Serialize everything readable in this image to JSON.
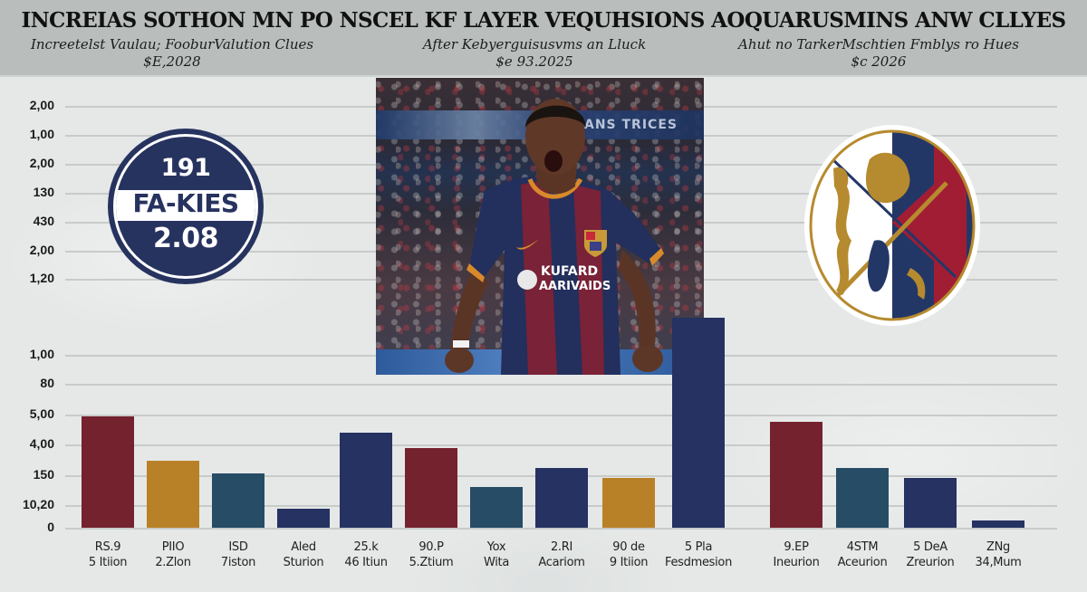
{
  "header": {
    "title": "INCREIAS SOTHON MN PO NSCEL KF LAYER VEQUHSIONS AOQUARUSMINS ANW CLLYES",
    "subtitles": [
      {
        "text": "Increetelst Vaulau; FooburValution Clues",
        "year": "$E,2028"
      },
      {
        "text": "After Kebyerguisusvms an Lluck",
        "year": "$e 93.2025"
      },
      {
        "text": "Ahut  no TarkerMschtien Fmblys ro Hues",
        "year": "$c 2026"
      }
    ]
  },
  "badge": {
    "line1": "191",
    "line2": "FA-KIES",
    "line3": "2.08",
    "colors": {
      "fill": "#27335f",
      "band": "#ffffff"
    }
  },
  "photo": {
    "sponsor_line1": "KUFARD",
    "sponsor_line2": "AARIVAIDS",
    "banner_text": "ANS TRICES"
  },
  "crest": {
    "colors": {
      "white": "#ffffff",
      "navy": "#233767",
      "red": "#a11d34",
      "gold": "#b68a2e"
    }
  },
  "colors": {
    "red": "#75222f",
    "gold": "#b88127",
    "teal": "#264c66",
    "navy": "#253262",
    "grid": "#c7cbca",
    "header_bg": "#b9bebd"
  },
  "chart_data": {
    "type": "bar",
    "title": "INCREIAS SOTHON MN PO NSCEL KF LAYER VEQUHSIONS AOQUARUSMINS ANW CLLYES",
    "upper_axis_ticks": [
      "2,00",
      "1,00",
      "2,00",
      "130",
      "430",
      "2,00",
      "1,20"
    ],
    "lower_axis_ticks": [
      "1,00",
      "80",
      "5,00",
      "4,00",
      "150",
      "10,20",
      "0"
    ],
    "grid": true,
    "categories": [
      [
        "RS.9",
        "5 Itiion"
      ],
      [
        "PIIO",
        "2.Zlon"
      ],
      [
        "ISD",
        "7iston"
      ],
      [
        "Aled",
        "Sturion"
      ],
      [
        "25.k",
        "46 Itiun"
      ],
      [
        "90.P",
        "5.Ztium"
      ],
      [
        "Yox",
        "Wita"
      ],
      [
        "2.RI",
        "Acariom"
      ],
      [
        "90 de",
        "9 Itiion"
      ],
      [
        "5 Pla",
        "Fesdmesion"
      ],
      [
        "9.EP",
        "Ineurion"
      ],
      [
        "4STM",
        "Aceurion"
      ],
      [
        "5 DeA",
        "Zreurion"
      ],
      [
        "ZNg",
        "34,Mum"
      ]
    ],
    "values": [
      6.0,
      3.6,
      2.9,
      1.0,
      5.1,
      4.3,
      2.2,
      3.2,
      2.7,
      11.3,
      5.7,
      3.2,
      2.7,
      0.4
    ],
    "bar_colors": [
      "red",
      "gold",
      "teal",
      "navy",
      "navy",
      "red",
      "teal",
      "navy",
      "gold",
      "navy",
      "red",
      "teal",
      "navy",
      "navy"
    ],
    "groups": [
      {
        "name": "Increetelst Vaulau; FooburValution Clues $E,2028",
        "range": [
          0,
          3
        ]
      },
      {
        "name": "After Kebyerguisusvms an Lluck $e 93.2025",
        "range": [
          4,
          9
        ]
      },
      {
        "name": "Ahut no TarkerMschtien Fmblys ro Hues $c 2026",
        "range": [
          10,
          13
        ]
      }
    ],
    "xlabel": "",
    "ylabel": "",
    "ylim": [
      0,
      12
    ]
  }
}
